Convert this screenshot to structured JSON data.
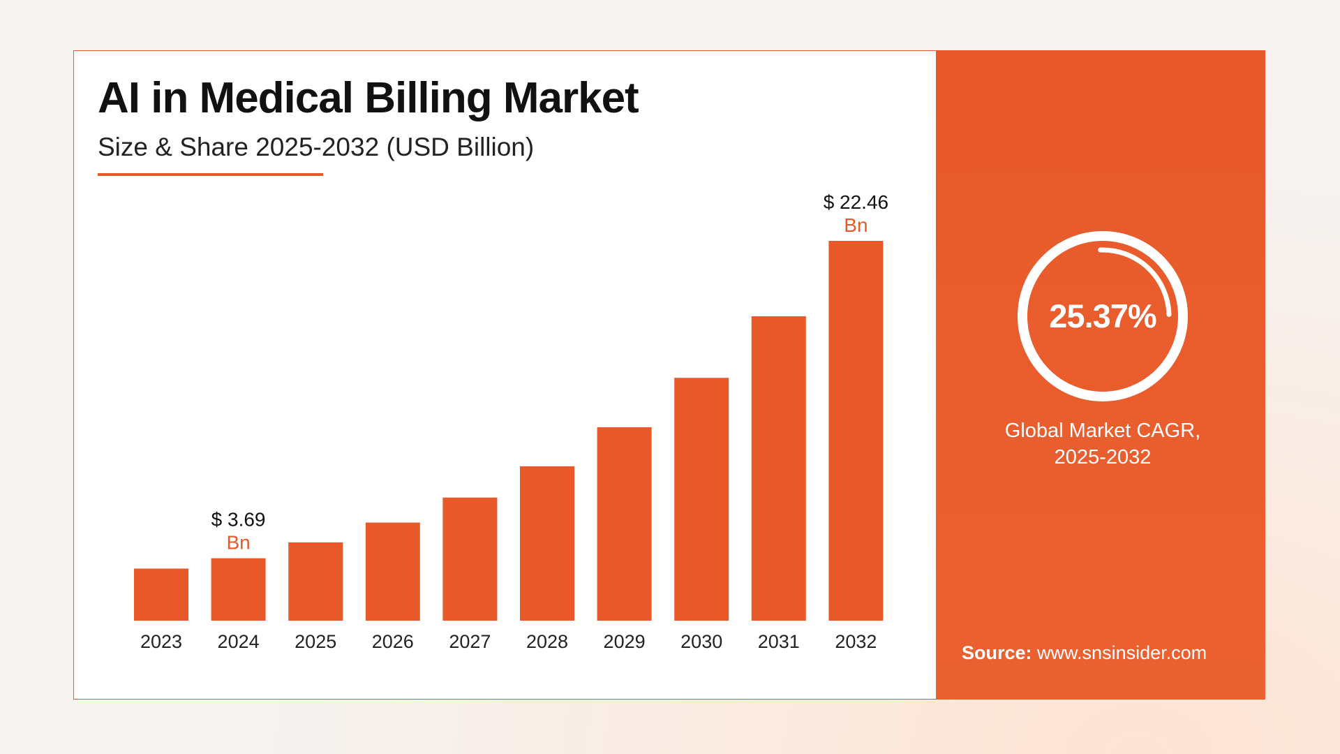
{
  "header": {
    "title": "AI in Medical Billing Market",
    "subtitle": "Size & Share 2025-2032 (USD Billion)"
  },
  "chart_data": {
    "type": "bar",
    "title": "AI in Medical Billing Market",
    "subtitle": "Size & Share 2025-2032 (USD Billion)",
    "categories": [
      "2023",
      "2024",
      "2025",
      "2026",
      "2027",
      "2028",
      "2029",
      "2030",
      "2031",
      "2032"
    ],
    "values": [
      3.08,
      3.69,
      4.63,
      5.8,
      7.28,
      9.13,
      11.44,
      14.36,
      18.0,
      22.46
    ],
    "ylim": [
      0,
      22.46
    ],
    "grid": false,
    "bar_color": "#e8592a",
    "annotations": [
      {
        "category": "2024",
        "value_text": "$ 3.69",
        "unit_text": "Bn"
      },
      {
        "category": "2032",
        "value_text": "$ 22.46",
        "unit_text": "Bn"
      }
    ]
  },
  "side_panel": {
    "cagr_value": "25.37%",
    "cagr_label_line1": "Global Market CAGR,",
    "cagr_label_line2": "2025-2032",
    "source_label": "Source:",
    "source_url": "www.snsinsider.com",
    "background_color": "#e8592a"
  },
  "colors": {
    "accent": "#e8592a",
    "text_dark": "#111111",
    "background": "#ffffff"
  }
}
